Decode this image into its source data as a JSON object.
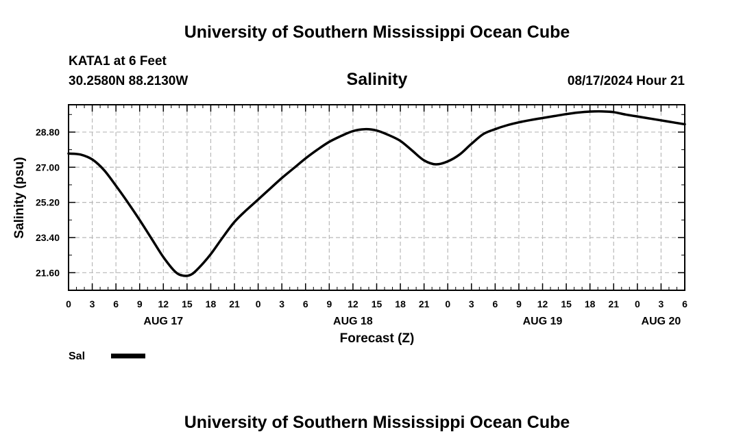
{
  "header": {
    "title": "University of Southern Mississippi Ocean Cube",
    "station": "KATA1 at 6 Feet",
    "coords": "30.2580N  88.2130W",
    "parameter": "Salinity",
    "timestamp": "08/17/2024 Hour 21"
  },
  "footer": {
    "title": "University of Southern Mississippi Ocean Cube"
  },
  "legend": {
    "label": "Sal",
    "color": "#000000"
  },
  "chart_data": {
    "type": "line",
    "title": "Salinity",
    "xlabel": "Forecast (Z)",
    "ylabel": "Salinity (psu)",
    "xlim": [
      0,
      78
    ],
    "ylim": [
      20.7,
      30.2
    ],
    "grid": true,
    "legend_position": "bottom-left",
    "x_tick_labels": [
      "0",
      "3",
      "6",
      "9",
      "12",
      "15",
      "18",
      "21",
      "0",
      "3",
      "6",
      "9",
      "12",
      "15",
      "18",
      "21",
      "0",
      "3",
      "6",
      "9",
      "12",
      "15",
      "18",
      "21",
      "0",
      "3",
      "6"
    ],
    "date_labels": [
      {
        "label": "AUG 17",
        "hour": 12
      },
      {
        "label": "AUG 18",
        "hour": 36
      },
      {
        "label": "AUG 19",
        "hour": 60
      },
      {
        "label": "AUG 20",
        "hour": 75
      }
    ],
    "y_ticks": [
      21.6,
      23.4,
      25.2,
      27.0,
      28.8
    ],
    "y_tick_labels": [
      "21.60",
      "23.40",
      "25.20",
      "27.00",
      "28.80"
    ],
    "series": [
      {
        "name": "Sal",
        "x": [
          0,
          1.5,
          3,
          4.5,
          6,
          7.5,
          9,
          10.5,
          12,
          13.5,
          14.5,
          15.5,
          16.5,
          18,
          19.5,
          21,
          22.5,
          24,
          25.5,
          27,
          28.5,
          30,
          31.5,
          33,
          34.5,
          36,
          37.5,
          39,
          40.5,
          42,
          43.5,
          45,
          46.5,
          48,
          49.5,
          51,
          52.5,
          54,
          55.5,
          57,
          58.5,
          60,
          61.5,
          63,
          64.5,
          66,
          67.5,
          69,
          70.5,
          72,
          73.5,
          75,
          76.5,
          78
        ],
        "y": [
          27.7,
          27.65,
          27.4,
          26.85,
          26.05,
          25.2,
          24.3,
          23.35,
          22.4,
          21.65,
          21.45,
          21.5,
          21.85,
          22.55,
          23.4,
          24.2,
          24.8,
          25.35,
          25.9,
          26.45,
          26.95,
          27.45,
          27.9,
          28.3,
          28.6,
          28.85,
          28.95,
          28.88,
          28.65,
          28.35,
          27.85,
          27.35,
          27.15,
          27.3,
          27.65,
          28.2,
          28.7,
          28.95,
          29.15,
          29.3,
          29.42,
          29.52,
          29.62,
          29.72,
          29.8,
          29.85,
          29.86,
          29.82,
          29.7,
          29.6,
          29.5,
          29.4,
          29.3,
          29.2
        ]
      }
    ]
  }
}
